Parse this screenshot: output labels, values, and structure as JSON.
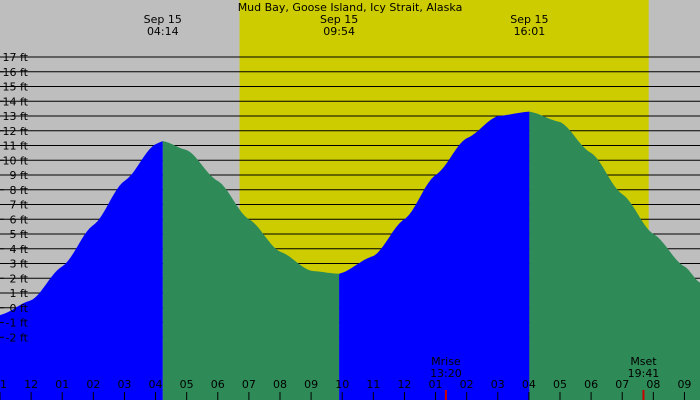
{
  "chart_data": {
    "type": "area",
    "title": "Mud Bay, Goose Island, Icy Strait, Alaska",
    "ylabel_unit": "ft",
    "ylim": [
      -3,
      18
    ],
    "xlim_hours": [
      0,
      22.5
    ],
    "y_ticks": [
      -2,
      -1,
      0,
      1,
      2,
      3,
      4,
      5,
      6,
      7,
      8,
      9,
      10,
      11,
      12,
      13,
      14,
      15,
      16,
      17
    ],
    "y_tick_labels": [
      "-2 ft",
      "-1 ft",
      "0 ft",
      "1 ft",
      "2 ft",
      "3 ft",
      "4 ft",
      "5 ft",
      "6 ft",
      "7 ft",
      "8 ft",
      "9 ft",
      "10 ft",
      "11 ft",
      "12 ft",
      "13 ft",
      "14 ft",
      "15 ft",
      "16 ft",
      "17 ft"
    ],
    "x_tick_labels": [
      "11",
      "12",
      "01",
      "02",
      "03",
      "04",
      "05",
      "06",
      "07",
      "08",
      "09",
      "10",
      "11",
      "12",
      "01",
      "02",
      "03",
      "04",
      "05",
      "06",
      "07",
      "08",
      "09"
    ],
    "extremes": [
      {
        "date": "Sep 15",
        "time": "04:14",
        "hour": 5.233,
        "height": 11.3,
        "type": "high"
      },
      {
        "date": "Sep 15",
        "time": "09:54",
        "hour": 10.9,
        "height": 2.3,
        "type": "low"
      },
      {
        "date": "Sep 15",
        "time": "16:01",
        "hour": 17.017,
        "height": 13.3,
        "type": "high"
      }
    ],
    "curve": {
      "x": [
        0,
        1,
        2,
        3,
        4,
        5,
        5.233,
        6,
        7,
        8,
        9,
        10,
        10.9,
        12,
        13,
        14,
        15,
        16,
        17.017,
        18,
        19,
        20,
        21,
        22,
        22.5
      ],
      "y": [
        -0.5,
        0.5,
        2.8,
        5.6,
        8.6,
        11.1,
        11.3,
        10.7,
        8.6,
        6.0,
        3.8,
        2.5,
        2.3,
        3.5,
        6.0,
        9.0,
        11.5,
        13.0,
        13.3,
        12.6,
        10.5,
        7.7,
        5.0,
        2.8,
        1.7
      ]
    },
    "daylight": {
      "start_hour": 7.7,
      "end_hour": 20.85
    },
    "moon_events": [
      {
        "label": "Mrise",
        "time": "13:20",
        "hour": 14.333
      },
      {
        "label": "Mset",
        "time": "19:41",
        "hour": 20.683
      }
    ],
    "colors": {
      "background": "#bebebe",
      "daylight": "#cccc00",
      "rising": "#0000ff",
      "falling": "#2e8b57",
      "grid": "#000000",
      "moon_tick": "#cc0000"
    }
  }
}
